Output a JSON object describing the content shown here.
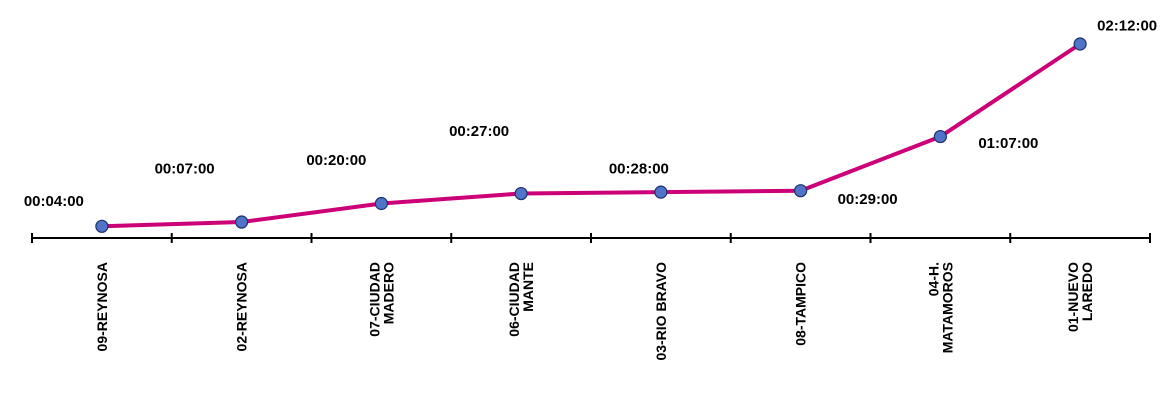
{
  "chart_data": {
    "type": "line",
    "title": "",
    "xlabel": "",
    "ylabel": "",
    "categories": [
      "09-REYNOSA",
      "02-REYNOSA",
      "07-CIUDAD MADERO",
      "06-CIUDAD MANTE",
      "03-RIO BRAVO",
      "08-TAMPICO",
      "04-H. MATAMOROS",
      "01-NUEVO LAREDO"
    ],
    "category_lines": [
      [
        "09-REYNOSA"
      ],
      [
        "02-REYNOSA"
      ],
      [
        "07-CIUDAD",
        "MADERO"
      ],
      [
        "06-CIUDAD",
        "MANTE"
      ],
      [
        "03-RIO BRAVO"
      ],
      [
        "08-TAMPICO"
      ],
      [
        "04-H.",
        "MATAMOROS"
      ],
      [
        "01-NUEVO",
        "LAREDO"
      ]
    ],
    "series": [
      {
        "values": [
          4,
          7,
          20,
          27,
          28,
          29,
          67,
          132
        ],
        "labels": [
          "00:04:00",
          "00:07:00",
          "00:20:00",
          "00:27:00",
          "00:28:00",
          "00:29:00",
          "01:07:00",
          "02:12:00"
        ]
      }
    ],
    "value_unit": "minutes",
    "grid": false,
    "legend": "none",
    "colors": {
      "line": "#cc0077",
      "marker_fill": "#4f74c8",
      "marker_stroke": "#1f2f6a",
      "axis": "#000000"
    }
  }
}
